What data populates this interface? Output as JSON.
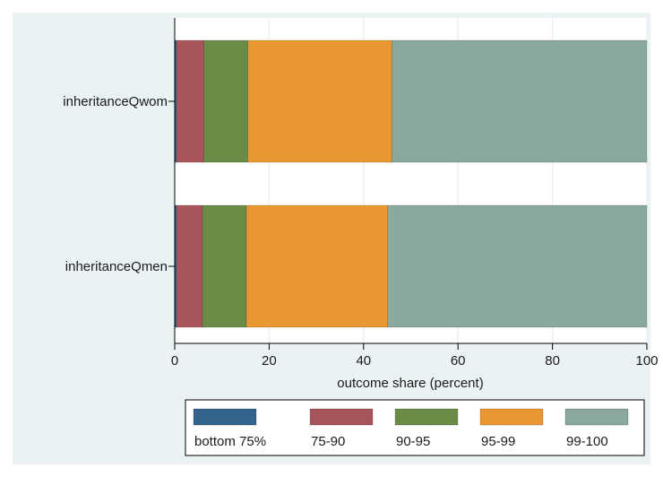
{
  "chart_data": {
    "type": "bar",
    "orientation": "horizontal",
    "stacked": true,
    "categories": [
      "inheritanceQwom",
      "inheritanceQmen"
    ],
    "series": [
      {
        "name": "bottom 75%",
        "color": "#34648c",
        "values": [
          0.4,
          0.4
        ]
      },
      {
        "name": "75-90",
        "color": "#a8545c",
        "values": [
          5.8,
          5.5
        ]
      },
      {
        "name": "90-95",
        "color": "#6a8c46",
        "values": [
          9.3,
          9.3
        ]
      },
      {
        "name": "95-99",
        "color": "#e99733",
        "values": [
          30.5,
          29.9
        ]
      },
      {
        "name": "99-100",
        "color": "#8aa89b",
        "values": [
          54.0,
          54.9
        ]
      }
    ],
    "xlabel": "outcome share (percent)",
    "xlim": [
      0,
      100
    ],
    "xticks": [
      "0",
      "20",
      "40",
      "60",
      "80",
      "100"
    ],
    "grid": "vertical",
    "legend_position": "bottom"
  },
  "colors": {
    "outer_background": "#eaf2f3",
    "plot_background": "#ffffff",
    "gridline": "#eaf2f3"
  }
}
